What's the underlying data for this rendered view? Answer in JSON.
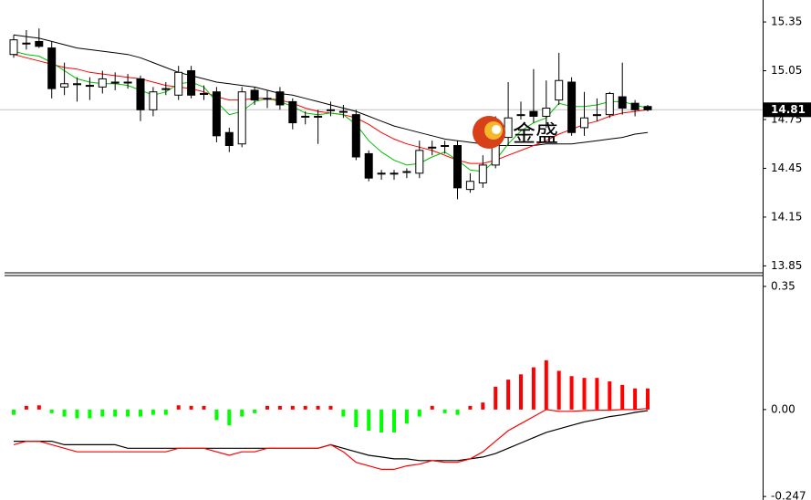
{
  "chart_data": [
    {
      "type": "candlestick",
      "ylim": [
        13.813,
        15.485
      ],
      "yticks": [
        15.35,
        15.05,
        14.75,
        14.45,
        14.15,
        13.85
      ],
      "last_price": 14.81,
      "watermark": "金盛",
      "up_color": "#ffffff",
      "down_color": "#000000",
      "price_line_color": "#c0c0c0",
      "open": [
        15.15,
        15.22,
        15.23,
        15.19,
        14.95,
        14.97,
        14.96,
        14.95,
        14.98,
        14.98,
        15.0,
        14.81,
        14.94,
        14.9,
        15.05,
        14.91,
        14.92,
        14.67,
        14.6,
        14.93,
        14.88,
        14.92,
        14.86,
        14.77,
        14.77,
        14.81,
        14.8,
        14.78,
        14.54,
        14.42,
        14.42,
        14.43,
        14.42,
        14.58,
        14.59,
        14.59,
        14.32,
        14.36,
        14.47,
        14.64,
        14.78,
        14.8,
        14.77,
        14.87,
        14.98,
        14.7,
        14.78,
        14.78,
        14.89,
        14.85,
        14.83
      ],
      "high": [
        15.27,
        15.3,
        15.31,
        15.23,
        15.1,
        15.01,
        15.01,
        15.05,
        15.04,
        15.03,
        15.02,
        14.95,
        14.98,
        15.08,
        15.08,
        14.96,
        14.95,
        14.7,
        14.95,
        14.95,
        14.93,
        14.95,
        14.88,
        14.8,
        14.81,
        14.86,
        14.84,
        14.81,
        14.56,
        14.44,
        14.44,
        14.45,
        14.62,
        14.62,
        14.62,
        14.62,
        14.42,
        14.53,
        14.77,
        14.98,
        14.86,
        15.06,
        14.99,
        15.16,
        15.01,
        14.92,
        14.88,
        14.92,
        15.1,
        14.87,
        14.84
      ],
      "low": [
        15.13,
        15.18,
        15.19,
        14.88,
        14.9,
        14.86,
        14.87,
        14.91,
        14.93,
        14.94,
        14.74,
        14.77,
        14.9,
        14.87,
        14.88,
        14.87,
        14.61,
        14.55,
        14.58,
        14.84,
        14.82,
        14.81,
        14.69,
        14.72,
        14.6,
        14.77,
        14.76,
        14.5,
        14.37,
        14.38,
        14.38,
        14.39,
        14.39,
        14.53,
        14.54,
        14.26,
        14.3,
        14.33,
        14.45,
        14.59,
        14.75,
        14.73,
        14.7,
        14.84,
        14.65,
        14.65,
        14.74,
        14.76,
        14.78,
        14.77,
        14.8
      ],
      "close": [
        15.24,
        15.22,
        15.2,
        14.94,
        14.97,
        14.97,
        14.96,
        15.0,
        14.98,
        14.98,
        14.81,
        14.92,
        14.94,
        15.04,
        14.9,
        14.91,
        14.65,
        14.59,
        14.92,
        14.87,
        14.88,
        14.84,
        14.73,
        14.77,
        14.77,
        14.81,
        14.8,
        14.52,
        14.39,
        14.42,
        14.42,
        14.43,
        14.56,
        14.58,
        14.59,
        14.33,
        14.37,
        14.47,
        14.7,
        14.76,
        14.78,
        14.77,
        14.82,
        14.99,
        14.67,
        14.76,
        14.78,
        14.91,
        14.82,
        14.81,
        14.81
      ],
      "lines": [
        {
          "color": "#000000",
          "values": [
            15.27,
            15.26,
            15.25,
            15.23,
            15.21,
            15.19,
            15.18,
            15.17,
            15.16,
            15.15,
            15.13,
            15.1,
            15.07,
            15.04,
            15.02,
            15.0,
            14.98,
            14.97,
            14.96,
            14.95,
            14.93,
            14.91,
            14.9,
            14.88,
            14.86,
            14.84,
            14.82,
            14.8,
            14.77,
            14.74,
            14.71,
            14.69,
            14.67,
            14.65,
            14.63,
            14.62,
            14.61,
            14.6,
            14.59,
            14.59,
            14.59,
            14.59,
            14.6,
            14.6,
            14.6,
            14.61,
            14.62,
            14.63,
            14.64,
            14.66,
            14.67
          ]
        },
        {
          "color": "#ff0000",
          "values": [
            15.15,
            15.13,
            15.11,
            15.09,
            15.07,
            15.06,
            15.04,
            15.03,
            15.02,
            15.01,
            15.0,
            14.98,
            14.96,
            14.95,
            14.94,
            14.92,
            14.89,
            14.87,
            14.87,
            14.88,
            14.88,
            14.87,
            14.85,
            14.82,
            14.8,
            14.79,
            14.78,
            14.76,
            14.72,
            14.67,
            14.63,
            14.6,
            14.58,
            14.56,
            14.53,
            14.5,
            14.48,
            14.48,
            14.5,
            14.53,
            14.56,
            14.59,
            14.62,
            14.66,
            14.69,
            14.72,
            14.74,
            14.77,
            14.79,
            14.8,
            14.81
          ]
        },
        {
          "color": "#00c000",
          "values": [
            15.17,
            15.15,
            15.14,
            15.1,
            15.05,
            15.0,
            14.98,
            14.97,
            14.97,
            14.96,
            14.93,
            14.9,
            14.92,
            14.97,
            14.98,
            14.95,
            14.86,
            14.78,
            14.8,
            14.86,
            14.88,
            14.86,
            14.83,
            14.79,
            14.78,
            14.79,
            14.78,
            14.72,
            14.62,
            14.55,
            14.5,
            14.47,
            14.48,
            14.52,
            14.55,
            14.5,
            14.44,
            14.43,
            14.5,
            14.6,
            14.68,
            14.73,
            14.76,
            14.85,
            14.83,
            14.83,
            14.84,
            14.86,
            14.86,
            14.84,
            14.82
          ]
        }
      ]
    },
    {
      "type": "macd",
      "ylim": [
        -0.257,
        0.373
      ],
      "yticks": [
        0.35,
        {
          "value": 0,
          "label": "0.00"
        },
        {
          "value": -0.247,
          "label": "-0.247"
        }
      ],
      "up_color": "#ff0000",
      "down_color": "#00ff00",
      "values": [
        -0.015,
        0.01,
        0.012,
        -0.01,
        -0.02,
        -0.025,
        -0.025,
        -0.02,
        -0.02,
        -0.02,
        -0.02,
        -0.015,
        -0.015,
        0.012,
        0.01,
        0.008,
        -0.03,
        -0.045,
        -0.02,
        -0.005,
        0.01,
        0.01,
        0.005,
        0.005,
        0.005,
        0.008,
        -0.02,
        -0.05,
        -0.06,
        -0.065,
        -0.065,
        -0.04,
        -0.02,
        0.005,
        -0.01,
        -0.015,
        0.005,
        0.02,
        0.065,
        0.085,
        0.1,
        0.12,
        0.14,
        0.11,
        0.095,
        0.09,
        0.09,
        0.08,
        0.07,
        0.06,
        0.06
      ],
      "lines": [
        {
          "color": "#000000",
          "values": [
            -0.09,
            -0.09,
            -0.09,
            -0.09,
            -0.1,
            -0.1,
            -0.1,
            -0.1,
            -0.1,
            -0.11,
            -0.11,
            -0.11,
            -0.11,
            -0.11,
            -0.11,
            -0.11,
            -0.11,
            -0.11,
            -0.11,
            -0.11,
            -0.11,
            -0.11,
            -0.11,
            -0.11,
            -0.11,
            -0.1,
            -0.11,
            -0.12,
            -0.13,
            -0.135,
            -0.14,
            -0.14,
            -0.145,
            -0.145,
            -0.145,
            -0.145,
            -0.14,
            -0.135,
            -0.125,
            -0.11,
            -0.095,
            -0.08,
            -0.065,
            -0.055,
            -0.045,
            -0.035,
            -0.028,
            -0.02,
            -0.015,
            -0.008,
            -0.003
          ]
        },
        {
          "color": "#ff0000",
          "values": [
            -0.1,
            -0.09,
            -0.09,
            -0.1,
            -0.11,
            -0.12,
            -0.12,
            -0.12,
            -0.12,
            -0.12,
            -0.12,
            -0.12,
            -0.12,
            -0.11,
            -0.11,
            -0.11,
            -0.12,
            -0.13,
            -0.12,
            -0.12,
            -0.11,
            -0.11,
            -0.11,
            -0.11,
            -0.11,
            -0.1,
            -0.12,
            -0.15,
            -0.16,
            -0.17,
            -0.17,
            -0.16,
            -0.155,
            -0.145,
            -0.15,
            -0.15,
            -0.14,
            -0.12,
            -0.09,
            -0.06,
            -0.04,
            -0.02,
            0,
            -0.005,
            -0.005,
            -0.003,
            -0.002,
            -0.002,
            0,
            0,
            0.003
          ]
        }
      ]
    }
  ]
}
